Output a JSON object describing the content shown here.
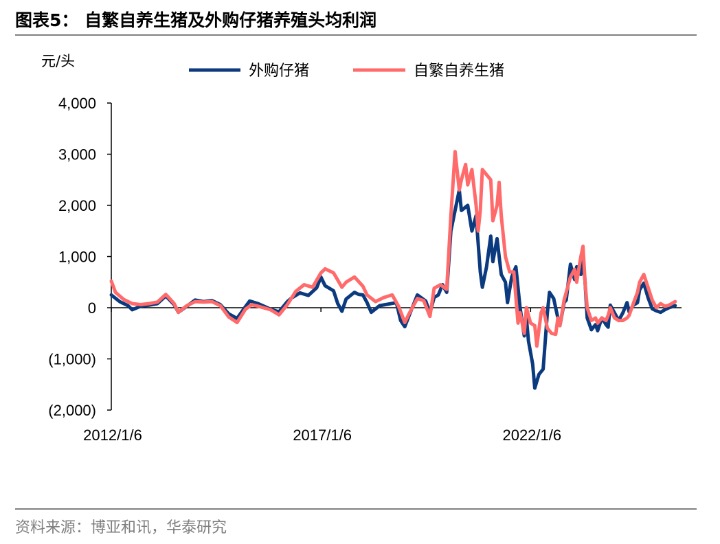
{
  "header": {
    "title": "图表5：  自繁自养生猪及外购仔猪养殖头均利润"
  },
  "footer": {
    "source": "资料来源：博亚和讯，华泰研究"
  },
  "chart_data": {
    "type": "line",
    "ylabel": "元/头",
    "ylim": [
      -2000,
      4000
    ],
    "yticks": [
      4000,
      3000,
      2000,
      1000,
      0,
      -1000,
      -2000
    ],
    "ytick_labels": [
      "4,000",
      "3,000",
      "2,000",
      "1,000",
      "0",
      "(1,000)",
      "(2,000)"
    ],
    "xlim": [
      2012.0,
      2025.6
    ],
    "xtick_labels": [
      "2012/1/6",
      "2017/1/6",
      "2022/1/6"
    ],
    "xtick_values": [
      2012.0,
      2017.0,
      2022.0
    ],
    "legend_position": "top",
    "series": [
      {
        "name": "外购仔猪",
        "color": "#0b3a7e",
        "points": [
          [
            2012.0,
            250
          ],
          [
            2012.2,
            120
          ],
          [
            2012.4,
            40
          ],
          [
            2012.5,
            -40
          ],
          [
            2012.7,
            30
          ],
          [
            2012.9,
            50
          ],
          [
            2013.1,
            80
          ],
          [
            2013.3,
            230
          ],
          [
            2013.5,
            60
          ],
          [
            2013.6,
            -90
          ],
          [
            2013.8,
            30
          ],
          [
            2014.0,
            150
          ],
          [
            2014.2,
            120
          ],
          [
            2014.4,
            140
          ],
          [
            2014.6,
            60
          ],
          [
            2014.8,
            -120
          ],
          [
            2015.0,
            -210
          ],
          [
            2015.2,
            20
          ],
          [
            2015.3,
            130
          ],
          [
            2015.5,
            80
          ],
          [
            2015.8,
            -30
          ],
          [
            2016.0,
            -80
          ],
          [
            2016.2,
            120
          ],
          [
            2016.3,
            190
          ],
          [
            2016.5,
            290
          ],
          [
            2016.7,
            240
          ],
          [
            2016.9,
            390
          ],
          [
            2017.0,
            600
          ],
          [
            2017.1,
            430
          ],
          [
            2017.3,
            330
          ],
          [
            2017.4,
            80
          ],
          [
            2017.5,
            -70
          ],
          [
            2017.6,
            170
          ],
          [
            2017.8,
            300
          ],
          [
            2017.9,
            260
          ],
          [
            2018.0,
            250
          ],
          [
            2018.1,
            100
          ],
          [
            2018.2,
            -90
          ],
          [
            2018.4,
            40
          ],
          [
            2018.6,
            70
          ],
          [
            2018.8,
            100
          ],
          [
            2018.9,
            -250
          ],
          [
            2019.0,
            -370
          ],
          [
            2019.1,
            -160
          ],
          [
            2019.3,
            250
          ],
          [
            2019.5,
            130
          ],
          [
            2019.6,
            -100
          ],
          [
            2019.7,
            200
          ],
          [
            2019.8,
            250
          ],
          [
            2019.9,
            450
          ],
          [
            2020.0,
            300
          ],
          [
            2020.1,
            1500
          ],
          [
            2020.3,
            2300
          ],
          [
            2020.35,
            1900
          ],
          [
            2020.5,
            2000
          ],
          [
            2020.6,
            1500
          ],
          [
            2020.7,
            1800
          ],
          [
            2020.8,
            700
          ],
          [
            2020.85,
            400
          ],
          [
            2020.95,
            800
          ],
          [
            2021.05,
            1400
          ],
          [
            2021.1,
            900
          ],
          [
            2021.2,
            1350
          ],
          [
            2021.3,
            650
          ],
          [
            2021.4,
            500
          ],
          [
            2021.45,
            100
          ],
          [
            2021.55,
            600
          ],
          [
            2021.65,
            800
          ],
          [
            2021.75,
            0
          ],
          [
            2021.85,
            -550
          ],
          [
            2021.9,
            -200
          ],
          [
            2021.95,
            -650
          ],
          [
            2022.05,
            -1100
          ],
          [
            2022.1,
            -1570
          ],
          [
            2022.2,
            -1300
          ],
          [
            2022.3,
            -1200
          ],
          [
            2022.4,
            -100
          ],
          [
            2022.45,
            300
          ],
          [
            2022.55,
            180
          ],
          [
            2022.65,
            -200
          ],
          [
            2022.7,
            -350
          ],
          [
            2022.8,
            100
          ],
          [
            2022.85,
            150
          ],
          [
            2022.9,
            500
          ],
          [
            2022.95,
            850
          ],
          [
            2023.05,
            550
          ],
          [
            2023.1,
            800
          ],
          [
            2023.2,
            650
          ],
          [
            2023.25,
            1000
          ],
          [
            2023.3,
            500
          ],
          [
            2023.35,
            -200
          ],
          [
            2023.45,
            -430
          ],
          [
            2023.55,
            -330
          ],
          [
            2023.6,
            -450
          ],
          [
            2023.7,
            -200
          ],
          [
            2023.8,
            -330
          ],
          [
            2023.85,
            -380
          ],
          [
            2023.9,
            50
          ],
          [
            2024.0,
            -100
          ],
          [
            2024.1,
            -250
          ],
          [
            2024.2,
            -100
          ],
          [
            2024.3,
            100
          ],
          [
            2024.35,
            -80
          ],
          [
            2024.45,
            50
          ],
          [
            2024.55,
            100
          ],
          [
            2024.6,
            350
          ],
          [
            2024.7,
            480
          ],
          [
            2024.8,
            200
          ],
          [
            2024.9,
            -20
          ],
          [
            2025.0,
            -60
          ],
          [
            2025.1,
            -90
          ],
          [
            2025.2,
            -40
          ],
          [
            2025.3,
            0
          ],
          [
            2025.45,
            40
          ]
        ]
      },
      {
        "name": "自繁自养生猪",
        "color": "#ff6b6b",
        "points": [
          [
            2012.0,
            520
          ],
          [
            2012.1,
            300
          ],
          [
            2012.3,
            160
          ],
          [
            2012.5,
            80
          ],
          [
            2012.7,
            60
          ],
          [
            2012.9,
            80
          ],
          [
            2013.1,
            110
          ],
          [
            2013.3,
            260
          ],
          [
            2013.5,
            80
          ],
          [
            2013.6,
            -90
          ],
          [
            2013.8,
            40
          ],
          [
            2014.0,
            120
          ],
          [
            2014.2,
            110
          ],
          [
            2014.4,
            120
          ],
          [
            2014.6,
            40
          ],
          [
            2014.8,
            -180
          ],
          [
            2015.0,
            -290
          ],
          [
            2015.2,
            -30
          ],
          [
            2015.35,
            60
          ],
          [
            2015.5,
            30
          ],
          [
            2015.8,
            -40
          ],
          [
            2016.0,
            -140
          ],
          [
            2016.2,
            60
          ],
          [
            2016.4,
            320
          ],
          [
            2016.6,
            450
          ],
          [
            2016.8,
            400
          ],
          [
            2017.0,
            680
          ],
          [
            2017.1,
            760
          ],
          [
            2017.3,
            680
          ],
          [
            2017.5,
            400
          ],
          [
            2017.6,
            500
          ],
          [
            2017.8,
            600
          ],
          [
            2018.0,
            420
          ],
          [
            2018.1,
            250
          ],
          [
            2018.3,
            120
          ],
          [
            2018.5,
            200
          ],
          [
            2018.7,
            250
          ],
          [
            2018.85,
            30
          ],
          [
            2019.0,
            -290
          ],
          [
            2019.1,
            -120
          ],
          [
            2019.3,
            180
          ],
          [
            2019.45,
            140
          ],
          [
            2019.6,
            -170
          ],
          [
            2019.7,
            380
          ],
          [
            2019.85,
            450
          ],
          [
            2020.0,
            360
          ],
          [
            2020.1,
            1800
          ],
          [
            2020.2,
            3050
          ],
          [
            2020.3,
            2300
          ],
          [
            2020.35,
            2500
          ],
          [
            2020.45,
            2800
          ],
          [
            2020.5,
            2400
          ],
          [
            2020.6,
            2700
          ],
          [
            2020.7,
            2000
          ],
          [
            2020.75,
            1500
          ],
          [
            2020.8,
            1900
          ],
          [
            2020.85,
            2700
          ],
          [
            2020.95,
            2600
          ],
          [
            2021.05,
            2500
          ],
          [
            2021.1,
            1700
          ],
          [
            2021.2,
            2000
          ],
          [
            2021.25,
            2450
          ],
          [
            2021.3,
            1800
          ],
          [
            2021.4,
            1000
          ],
          [
            2021.5,
            700
          ],
          [
            2021.6,
            700
          ],
          [
            2021.7,
            -300
          ],
          [
            2021.75,
            -100
          ],
          [
            2021.85,
            -500
          ],
          [
            2021.9,
            0
          ],
          [
            2022.0,
            -300
          ],
          [
            2022.1,
            -350
          ],
          [
            2022.15,
            -750
          ],
          [
            2022.25,
            -100
          ],
          [
            2022.3,
            0
          ],
          [
            2022.4,
            -400
          ],
          [
            2022.5,
            -500
          ],
          [
            2022.6,
            -520
          ],
          [
            2022.65,
            -200
          ],
          [
            2022.7,
            -350
          ],
          [
            2022.8,
            150
          ],
          [
            2022.9,
            450
          ],
          [
            2022.95,
            600
          ],
          [
            2023.05,
            750
          ],
          [
            2023.1,
            500
          ],
          [
            2023.2,
            1000
          ],
          [
            2023.25,
            1200
          ],
          [
            2023.3,
            500
          ],
          [
            2023.35,
            0
          ],
          [
            2023.45,
            -250
          ],
          [
            2023.55,
            -200
          ],
          [
            2023.6,
            -300
          ],
          [
            2023.7,
            -200
          ],
          [
            2023.8,
            -250
          ],
          [
            2023.85,
            -150
          ],
          [
            2023.9,
            0
          ],
          [
            2024.0,
            -200
          ],
          [
            2024.1,
            -250
          ],
          [
            2024.2,
            -250
          ],
          [
            2024.3,
            -200
          ],
          [
            2024.35,
            -150
          ],
          [
            2024.45,
            80
          ],
          [
            2024.55,
            300
          ],
          [
            2024.6,
            500
          ],
          [
            2024.7,
            650
          ],
          [
            2024.8,
            400
          ],
          [
            2024.9,
            150
          ],
          [
            2025.0,
            0
          ],
          [
            2025.1,
            80
          ],
          [
            2025.2,
            30
          ],
          [
            2025.3,
            50
          ],
          [
            2025.45,
            120
          ]
        ]
      }
    ]
  }
}
